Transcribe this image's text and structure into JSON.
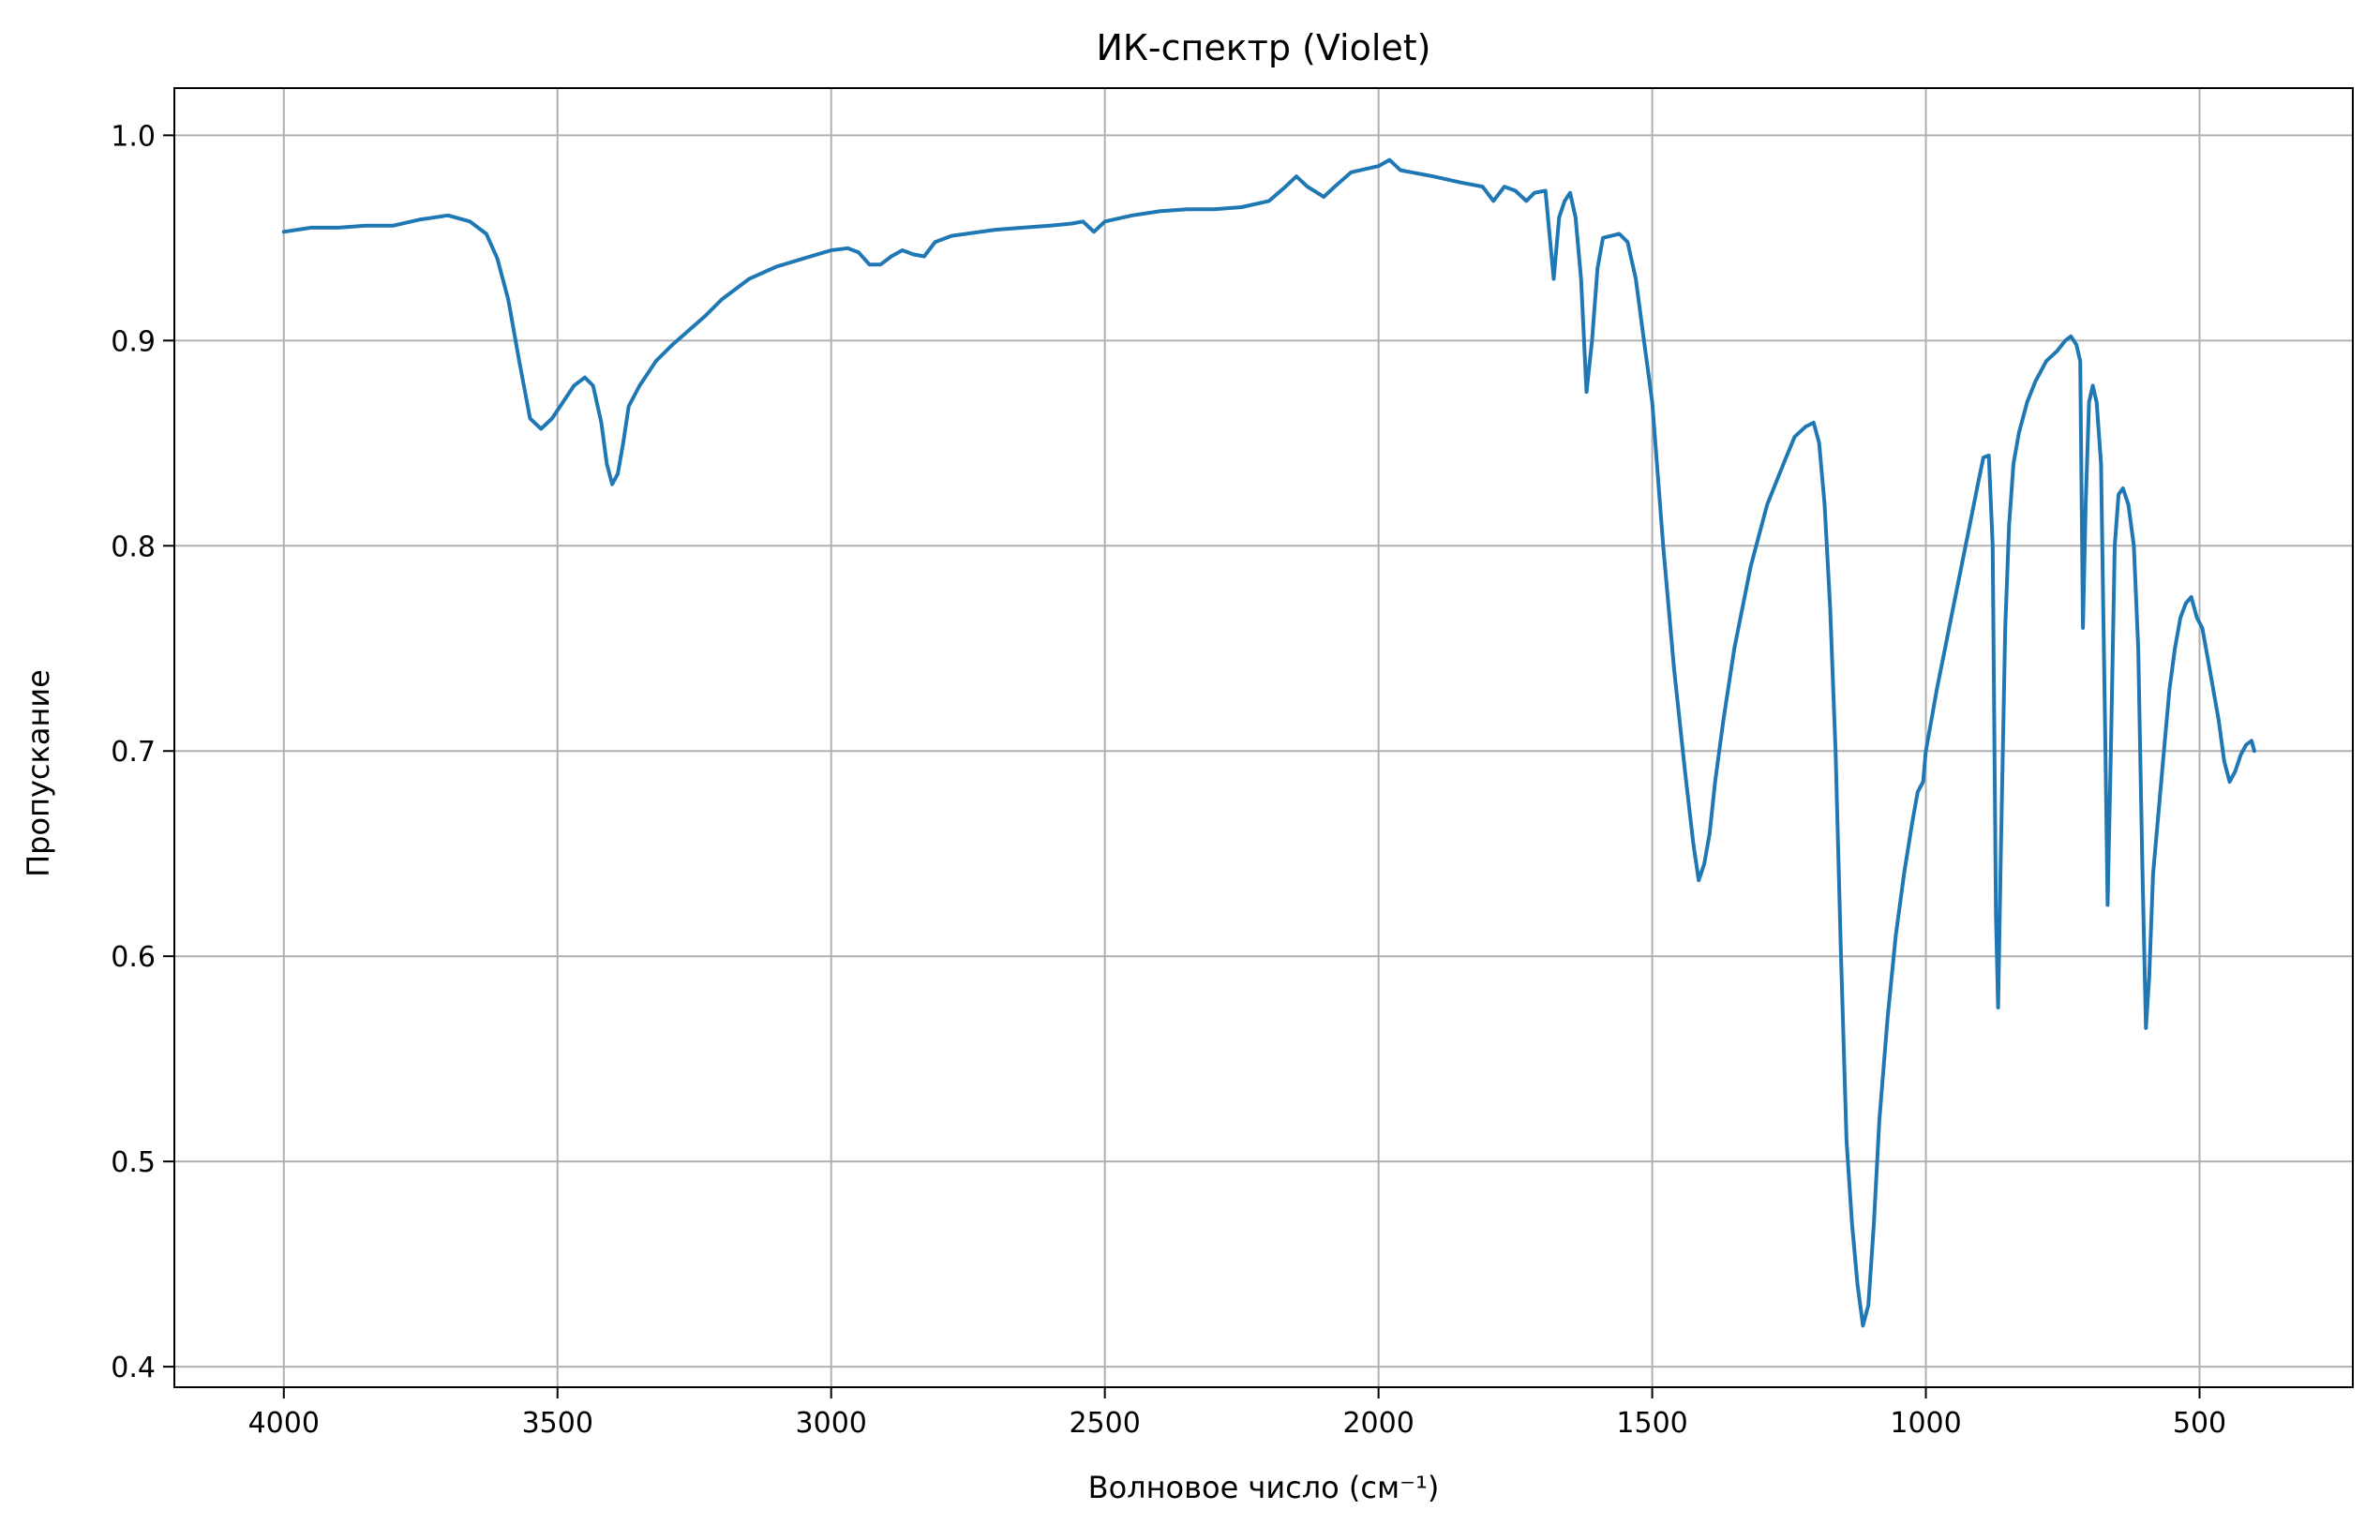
{
  "chart_data": {
    "type": "line",
    "title": "ИК-спектр (Violet)",
    "xlabel": "Волновое число (см⁻¹)",
    "ylabel": "Пропускание",
    "xlim": [
      4200,
      220
    ],
    "ylim": [
      0.39,
      1.023
    ],
    "x_reversed": true,
    "grid": true,
    "x_ticks": [
      4000,
      3500,
      3000,
      2500,
      2000,
      1500,
      1000,
      500
    ],
    "x_tick_labels": [
      "4000",
      "3500",
      "3000",
      "2500",
      "2000",
      "1500",
      "1000",
      "500"
    ],
    "y_ticks": [
      0.4,
      0.5,
      0.6,
      0.7,
      0.8,
      0.9,
      1.0
    ],
    "y_tick_labels": [
      "0.4",
      "0.5",
      "0.6",
      "0.7",
      "0.8",
      "0.9",
      "1.0"
    ],
    "colors": {
      "line": "#1f77b4",
      "grid": "#b0b0b0",
      "frame": "#000000"
    },
    "series": [
      {
        "values": [
          [
            4000,
            0.953
          ],
          [
            3950,
            0.955
          ],
          [
            3900,
            0.955
          ],
          [
            3850,
            0.956
          ],
          [
            3800,
            0.956
          ],
          [
            3750,
            0.959
          ],
          [
            3700,
            0.961
          ],
          [
            3660,
            0.958
          ],
          [
            3630,
            0.952
          ],
          [
            3610,
            0.94
          ],
          [
            3590,
            0.92
          ],
          [
            3570,
            0.89
          ],
          [
            3550,
            0.862
          ],
          [
            3530,
            0.857
          ],
          [
            3510,
            0.862
          ],
          [
            3490,
            0.87
          ],
          [
            3470,
            0.878
          ],
          [
            3450,
            0.882
          ],
          [
            3435,
            0.878
          ],
          [
            3420,
            0.86
          ],
          [
            3410,
            0.84
          ],
          [
            3400,
            0.83
          ],
          [
            3390,
            0.835
          ],
          [
            3380,
            0.85
          ],
          [
            3370,
            0.868
          ],
          [
            3350,
            0.878
          ],
          [
            3320,
            0.89
          ],
          [
            3290,
            0.898
          ],
          [
            3260,
            0.905
          ],
          [
            3230,
            0.912
          ],
          [
            3200,
            0.92
          ],
          [
            3150,
            0.93
          ],
          [
            3100,
            0.936
          ],
          [
            3050,
            0.94
          ],
          [
            3000,
            0.944
          ],
          [
            2970,
            0.945
          ],
          [
            2950,
            0.943
          ],
          [
            2930,
            0.937
          ],
          [
            2910,
            0.937
          ],
          [
            2890,
            0.941
          ],
          [
            2870,
            0.944
          ],
          [
            2850,
            0.942
          ],
          [
            2830,
            0.941
          ],
          [
            2810,
            0.948
          ],
          [
            2780,
            0.951
          ],
          [
            2700,
            0.954
          ],
          [
            2650,
            0.955
          ],
          [
            2600,
            0.956
          ],
          [
            2560,
            0.957
          ],
          [
            2540,
            0.958
          ],
          [
            2520,
            0.953
          ],
          [
            2500,
            0.958
          ],
          [
            2450,
            0.961
          ],
          [
            2400,
            0.963
          ],
          [
            2350,
            0.964
          ],
          [
            2300,
            0.964
          ],
          [
            2250,
            0.965
          ],
          [
            2200,
            0.968
          ],
          [
            2170,
            0.975
          ],
          [
            2150,
            0.98
          ],
          [
            2130,
            0.975
          ],
          [
            2100,
            0.97
          ],
          [
            2080,
            0.975
          ],
          [
            2050,
            0.982
          ],
          [
            2000,
            0.985
          ],
          [
            1980,
            0.988
          ],
          [
            1960,
            0.983
          ],
          [
            1940,
            0.982
          ],
          [
            1900,
            0.98
          ],
          [
            1850,
            0.977
          ],
          [
            1810,
            0.975
          ],
          [
            1790,
            0.968
          ],
          [
            1770,
            0.975
          ],
          [
            1750,
            0.973
          ],
          [
            1730,
            0.968
          ],
          [
            1715,
            0.972
          ],
          [
            1695,
            0.973
          ],
          [
            1680,
            0.93
          ],
          [
            1670,
            0.96
          ],
          [
            1660,
            0.968
          ],
          [
            1650,
            0.972
          ],
          [
            1640,
            0.96
          ],
          [
            1630,
            0.93
          ],
          [
            1620,
            0.875
          ],
          [
            1610,
            0.9
          ],
          [
            1600,
            0.935
          ],
          [
            1590,
            0.95
          ],
          [
            1560,
            0.952
          ],
          [
            1545,
            0.948
          ],
          [
            1530,
            0.93
          ],
          [
            1515,
            0.9
          ],
          [
            1500,
            0.87
          ],
          [
            1480,
            0.8
          ],
          [
            1460,
            0.74
          ],
          [
            1440,
            0.69
          ],
          [
            1425,
            0.655
          ],
          [
            1415,
            0.637
          ],
          [
            1405,
            0.645
          ],
          [
            1395,
            0.66
          ],
          [
            1385,
            0.685
          ],
          [
            1370,
            0.715
          ],
          [
            1350,
            0.75
          ],
          [
            1320,
            0.79
          ],
          [
            1290,
            0.82
          ],
          [
            1260,
            0.84
          ],
          [
            1240,
            0.853
          ],
          [
            1220,
            0.858
          ],
          [
            1205,
            0.86
          ],
          [
            1195,
            0.85
          ],
          [
            1185,
            0.82
          ],
          [
            1175,
            0.77
          ],
          [
            1165,
            0.7
          ],
          [
            1155,
            0.6
          ],
          [
            1145,
            0.51
          ],
          [
            1135,
            0.47
          ],
          [
            1125,
            0.44
          ],
          [
            1115,
            0.42
          ],
          [
            1105,
            0.43
          ],
          [
            1095,
            0.47
          ],
          [
            1085,
            0.52
          ],
          [
            1070,
            0.57
          ],
          [
            1055,
            0.61
          ],
          [
            1040,
            0.64
          ],
          [
            1025,
            0.665
          ],
          [
            1015,
            0.68
          ],
          [
            1005,
            0.685
          ],
          [
            1000,
            0.7
          ],
          [
            990,
            0.715
          ],
          [
            980,
            0.73
          ],
          [
            965,
            0.75
          ],
          [
            950,
            0.77
          ],
          [
            935,
            0.79
          ],
          [
            920,
            0.81
          ],
          [
            905,
            0.83
          ],
          [
            895,
            0.843
          ],
          [
            885,
            0.844
          ],
          [
            878,
            0.8
          ],
          [
            872,
            0.62
          ],
          [
            868,
            0.575
          ],
          [
            863,
            0.65
          ],
          [
            855,
            0.76
          ],
          [
            848,
            0.81
          ],
          [
            840,
            0.84
          ],
          [
            830,
            0.855
          ],
          [
            815,
            0.87
          ],
          [
            800,
            0.88
          ],
          [
            780,
            0.89
          ],
          [
            760,
            0.895
          ],
          [
            745,
            0.9
          ],
          [
            735,
            0.902
          ],
          [
            725,
            0.898
          ],
          [
            718,
            0.89
          ],
          [
            713,
            0.76
          ],
          [
            708,
            0.82
          ],
          [
            702,
            0.87
          ],
          [
            695,
            0.878
          ],
          [
            688,
            0.87
          ],
          [
            680,
            0.84
          ],
          [
            672,
            0.7
          ],
          [
            668,
            0.625
          ],
          [
            662,
            0.7
          ],
          [
            655,
            0.8
          ],
          [
            648,
            0.825
          ],
          [
            640,
            0.828
          ],
          [
            630,
            0.82
          ],
          [
            620,
            0.8
          ],
          [
            612,
            0.75
          ],
          [
            605,
            0.65
          ],
          [
            598,
            0.565
          ],
          [
            592,
            0.59
          ],
          [
            585,
            0.64
          ],
          [
            575,
            0.67
          ],
          [
            565,
            0.7
          ],
          [
            555,
            0.73
          ],
          [
            545,
            0.75
          ],
          [
            535,
            0.765
          ],
          [
            525,
            0.772
          ],
          [
            515,
            0.775
          ],
          [
            505,
            0.765
          ],
          [
            495,
            0.76
          ],
          [
            485,
            0.745
          ],
          [
            475,
            0.73
          ],
          [
            465,
            0.715
          ],
          [
            455,
            0.695
          ],
          [
            445,
            0.685
          ],
          [
            435,
            0.69
          ],
          [
            425,
            0.698
          ],
          [
            415,
            0.703
          ],
          [
            405,
            0.705
          ],
          [
            400,
            0.7
          ]
        ]
      }
    ]
  }
}
